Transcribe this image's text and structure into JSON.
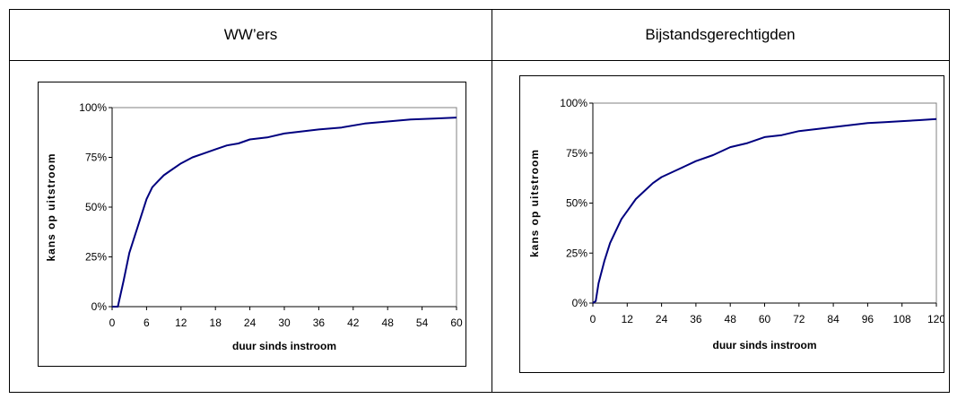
{
  "table": {
    "header_left": "WW’ers",
    "header_right": "Bijstandsgerechtigden"
  },
  "chart_data": [
    {
      "type": "line",
      "title": "",
      "xlabel": "duur sinds instroom",
      "ylabel": "kans op uitstroom",
      "xlim": [
        0,
        60
      ],
      "ylim": [
        0,
        100
      ],
      "x_ticks": [
        "0",
        "6",
        "12",
        "18",
        "24",
        "30",
        "36",
        "42",
        "48",
        "54",
        "60"
      ],
      "y_ticks": [
        "0%",
        "25%",
        "50%",
        "75%",
        "100%"
      ],
      "grid": false,
      "line_color": "#00007f",
      "series": [
        {
          "x": [
            0,
            1,
            2,
            3,
            4,
            5,
            6,
            7,
            8,
            9,
            10,
            12,
            14,
            16,
            18,
            20,
            22,
            24,
            27,
            30,
            33,
            36,
            40,
            44,
            48,
            52,
            56,
            60
          ],
          "values": [
            0,
            0,
            13,
            27,
            36,
            45,
            54,
            60,
            63,
            66,
            68,
            72,
            75,
            77,
            79,
            81,
            82,
            84,
            85,
            87,
            88,
            89,
            90,
            92,
            93,
            94,
            94.5,
            95
          ]
        }
      ]
    },
    {
      "type": "line",
      "title": "",
      "xlabel": "duur sinds instroom",
      "ylabel": "kans op uitstroom",
      "xlim": [
        0,
        120
      ],
      "ylim": [
        0,
        100
      ],
      "x_ticks": [
        "0",
        "12",
        "24",
        "36",
        "48",
        "60",
        "72",
        "84",
        "96",
        "108",
        "120"
      ],
      "y_ticks": [
        "0%",
        "25%",
        "50%",
        "75%",
        "100%"
      ],
      "grid": false,
      "line_color": "#00007f",
      "series": [
        {
          "x": [
            0,
            1,
            2,
            4,
            6,
            8,
            10,
            12,
            15,
            18,
            21,
            24,
            30,
            36,
            42,
            48,
            54,
            60,
            66,
            72,
            78,
            84,
            90,
            96,
            102,
            108,
            114,
            120
          ],
          "values": [
            0,
            1,
            10,
            21,
            30,
            36,
            42,
            46,
            52,
            56,
            60,
            63,
            67,
            71,
            74,
            78,
            80,
            83,
            84,
            86,
            87,
            88,
            89,
            90,
            90.5,
            91,
            91.5,
            92
          ]
        }
      ]
    }
  ]
}
